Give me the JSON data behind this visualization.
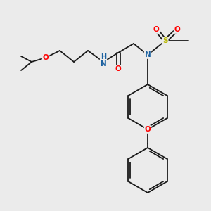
{
  "background_color": "#ebebeb",
  "bond_color": "#1a1a1a",
  "atom_colors": {
    "O": "#ff0000",
    "N": "#1a60a0",
    "H": "#1a60a0",
    "S": "#b8b800",
    "C": "#1a1a1a"
  },
  "figsize": [
    3.0,
    3.0
  ],
  "dpi": 100
}
